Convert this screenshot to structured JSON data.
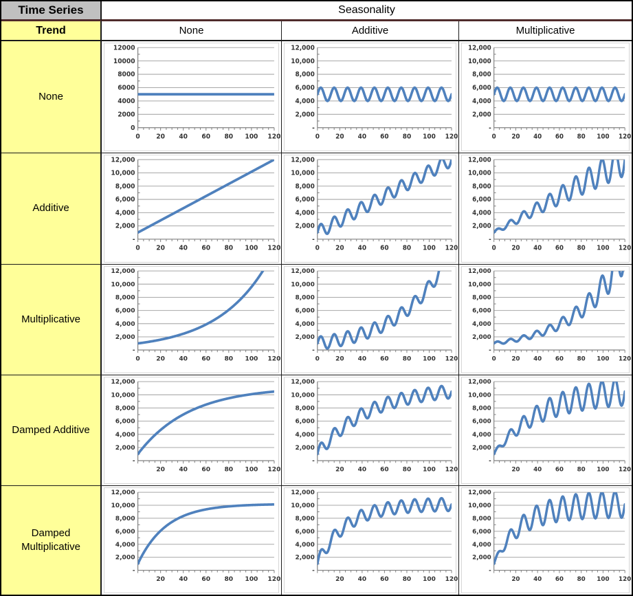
{
  "header": {
    "corner": "Time Series",
    "seasonality": "Seasonality",
    "trend": "Trend",
    "columns": [
      "None",
      "Additive",
      "Multiplicative"
    ]
  },
  "rows": [
    {
      "label": "None"
    },
    {
      "label": "Additive"
    },
    {
      "label": "Multiplicative"
    },
    {
      "label": "Damped Additive"
    },
    {
      "label": "Damped Multiplicative"
    }
  ],
  "colors": {
    "line": "#4F81BD",
    "grid": "#a8a8a8",
    "axis": "#808080",
    "tick_text": "#333333",
    "row_header_bg": "#FFFF99",
    "corner_bg": "#C0C0C0",
    "divider": "#4F2B2B",
    "table_border": "#000000"
  },
  "models": {
    "trend": {
      "none": {
        "type": "constant",
        "level": 5000
      },
      "additive": {
        "type": "linear",
        "start": 1000,
        "end": 12000
      },
      "multiplicative": {
        "type": "exponential",
        "start": 1000,
        "value_at_110": 12000
      },
      "damped_additive": {
        "type": "damped",
        "start": 1000,
        "asymptote": 11200,
        "tau": 45
      },
      "damped_multiplicative": {
        "type": "damped",
        "start": 1000,
        "asymptote": 10200,
        "tau": 25
      }
    },
    "seasonality": {
      "none": {
        "type": "none"
      },
      "additive": {
        "type": "additive",
        "amplitude": 1000,
        "period": 12
      },
      "multiplicative": {
        "type": "multiplicative",
        "fraction": 0.2,
        "period": 12
      }
    }
  },
  "chart_data": [
    {
      "type": "line",
      "cell": "trend-none-seasonality-none",
      "trend": "none",
      "seasonality": "none",
      "x_range": [
        0,
        120
      ],
      "ylim": [
        0,
        12000
      ],
      "grid": true,
      "approx": {
        "start": 5000,
        "end": 5000,
        "shape": "flat line at 5000"
      },
      "ytick_labels": [
        "12000",
        "10000",
        "8000",
        "6000",
        "4000",
        "2000",
        "0"
      ],
      "xtick_labels": [
        "0",
        "20",
        "40",
        "60",
        "80",
        "100",
        "120"
      ]
    },
    {
      "type": "line",
      "cell": "trend-none-seasonality-additive",
      "trend": "none",
      "seasonality": "additive",
      "x_range": [
        0,
        120
      ],
      "ylim": [
        0,
        12000
      ],
      "grid": true,
      "approx": {
        "start": 5000,
        "end": 5000,
        "min": 4000,
        "max": 6000,
        "cycles": 10,
        "shape": "constant-amplitude wave around 5000"
      },
      "ytick_labels": [
        "12,000",
        "10,000",
        "8,000",
        "6,000",
        "4,000",
        "2,000",
        "-"
      ],
      "xtick_labels": [
        "0",
        "20",
        "40",
        "60",
        "80",
        "100",
        "120"
      ]
    },
    {
      "type": "line",
      "cell": "trend-none-seasonality-multiplicative",
      "trend": "none",
      "seasonality": "multiplicative",
      "x_range": [
        0,
        120
      ],
      "ylim": [
        0,
        12000
      ],
      "grid": true,
      "approx": {
        "start": 5000,
        "end": 5000,
        "min": 4000,
        "max": 6000,
        "cycles": 10,
        "shape": "constant wave around 5000"
      },
      "ytick_labels": [
        "12,000",
        "10,000",
        "8,000",
        "6,000",
        "4,000",
        "2,000",
        "-"
      ],
      "xtick_labels": [
        "0",
        "20",
        "40",
        "60",
        "80",
        "100",
        "120"
      ]
    },
    {
      "type": "line",
      "cell": "trend-additive-seasonality-none",
      "trend": "additive",
      "seasonality": "none",
      "x_range": [
        0,
        120
      ],
      "ylim": [
        0,
        12000
      ],
      "grid": true,
      "approx": {
        "start": 1000,
        "end": 12000,
        "shape": "straight rising line"
      },
      "ytick_labels": [
        "12,000",
        "10,000",
        "8,000",
        "6,000",
        "4,000",
        "2,000",
        "-"
      ],
      "xtick_labels": [
        "0",
        "20",
        "40",
        "60",
        "80",
        "100",
        "120"
      ]
    },
    {
      "type": "line",
      "cell": "trend-additive-seasonality-additive",
      "trend": "additive",
      "seasonality": "additive",
      "x_range": [
        0,
        120
      ],
      "ylim": [
        0,
        12000
      ],
      "grid": true,
      "approx": {
        "start": 1000,
        "end": 12000,
        "amplitude": 1000,
        "cycles": 10,
        "shape": "rising wave, constant amplitude"
      },
      "ytick_labels": [
        "12,000",
        "10,000",
        "8,000",
        "6,000",
        "4,000",
        "2,000",
        "-"
      ],
      "xtick_labels": [
        "0",
        "20",
        "40",
        "60",
        "80",
        "100",
        "120"
      ]
    },
    {
      "type": "line",
      "cell": "trend-additive-seasonality-multiplicative",
      "trend": "additive",
      "seasonality": "multiplicative",
      "x_range": [
        0,
        120
      ],
      "ylim": [
        0,
        12000
      ],
      "grid": true,
      "approx": {
        "start": 1000,
        "end": 12000,
        "amplitude_pct": 20,
        "cycles": 10,
        "shape": "rising wave, growing amplitude"
      },
      "ytick_labels": [
        "12,000",
        "10,000",
        "8,000",
        "6,000",
        "4,000",
        "2,000",
        "-"
      ],
      "xtick_labels": [
        "0",
        "20",
        "40",
        "60",
        "80",
        "100",
        "120"
      ]
    },
    {
      "type": "line",
      "cell": "trend-multiplicative-seasonality-none",
      "trend": "multiplicative",
      "seasonality": "none",
      "x_range": [
        0,
        120
      ],
      "ylim": [
        0,
        12000
      ],
      "grid": true,
      "approx": {
        "start": 1000,
        "value_at_110": 12000,
        "shape": "exponential growth curve"
      },
      "ytick_labels": [
        "12,000",
        "10,000",
        "8,000",
        "6,000",
        "4,000",
        "2,000",
        "-"
      ],
      "xtick_labels": [
        "0",
        "20",
        "40",
        "60",
        "80",
        "100",
        "120"
      ]
    },
    {
      "type": "line",
      "cell": "trend-multiplicative-seasonality-additive",
      "trend": "multiplicative",
      "seasonality": "additive",
      "x_range": [
        0,
        120
      ],
      "ylim": [
        0,
        12000
      ],
      "grid": true,
      "approx": {
        "start": 1000,
        "amplitude": 1000,
        "cycles": 10,
        "shape": "exponential growth with constant-amplitude wave"
      },
      "ytick_labels": [
        "12,000",
        "10,000",
        "8,000",
        "6,000",
        "4,000",
        "2,000",
        "-"
      ],
      "xtick_labels": [
        "0",
        "20",
        "40",
        "60",
        "80",
        "100",
        "120"
      ]
    },
    {
      "type": "line",
      "cell": "trend-multiplicative-seasonality-multiplicative",
      "trend": "multiplicative",
      "seasonality": "multiplicative",
      "x_range": [
        0,
        120
      ],
      "ylim": [
        0,
        12000
      ],
      "grid": true,
      "approx": {
        "start": 1000,
        "amplitude_pct": 20,
        "cycles": 10,
        "shape": "exponential growth with growing wave"
      },
      "ytick_labels": [
        "12,000",
        "10,000",
        "8,000",
        "6,000",
        "4,000",
        "2,000",
        "-"
      ],
      "xtick_labels": [
        "0",
        "20",
        "40",
        "60",
        "80",
        "100",
        "120"
      ]
    },
    {
      "type": "line",
      "cell": "trend-damped-additive-seasonality-none",
      "trend": "damped_additive",
      "seasonality": "none",
      "x_range": [
        0,
        120
      ],
      "ylim": [
        0,
        12000
      ],
      "grid": true,
      "approx": {
        "start": 1000,
        "end": 10500,
        "shape": "concave curve saturating near 10,500"
      },
      "ytick_labels": [
        "12,000",
        "10,000",
        "8,000",
        "6,000",
        "4,000",
        "2,000",
        "-"
      ],
      "xtick_labels": [
        "",
        "20",
        "40",
        "60",
        "80",
        "100",
        "120"
      ]
    },
    {
      "type": "line",
      "cell": "trend-damped-additive-seasonality-additive",
      "trend": "damped_additive",
      "seasonality": "additive",
      "x_range": [
        0,
        120
      ],
      "ylim": [
        0,
        12000
      ],
      "grid": true,
      "approx": {
        "start": 1000,
        "end": 10500,
        "amplitude": 1000,
        "cycles": 10,
        "shape": "damped rise with constant-amplitude wave"
      },
      "ytick_labels": [
        "12,000",
        "10,000",
        "8,000",
        "6,000",
        "4,000",
        "2,000",
        "-"
      ],
      "xtick_labels": [
        "",
        "20",
        "40",
        "60",
        "80",
        "100",
        "120"
      ]
    },
    {
      "type": "line",
      "cell": "trend-damped-additive-seasonality-multiplicative",
      "trend": "damped_additive",
      "seasonality": "multiplicative",
      "x_range": [
        0,
        120
      ],
      "ylim": [
        0,
        12000
      ],
      "grid": true,
      "approx": {
        "start": 1000,
        "end": 10500,
        "amplitude_pct": 20,
        "cycles": 10,
        "shape": "damped rise with growing wave, ~8,000-12,000 at end"
      },
      "ytick_labels": [
        "12,000",
        "10,000",
        "8,000",
        "6,000",
        "4,000",
        "2,000",
        "-"
      ],
      "xtick_labels": [
        "",
        "20",
        "40",
        "60",
        "80",
        "100",
        "120"
      ]
    },
    {
      "type": "line",
      "cell": "trend-damped-multiplicative-seasonality-none",
      "trend": "damped_multiplicative",
      "seasonality": "none",
      "x_range": [
        0,
        120
      ],
      "ylim": [
        0,
        12000
      ],
      "grid": true,
      "approx": {
        "start": 1000,
        "end": 10200,
        "shape": "fast rise, flat near 10,200 after x=60"
      },
      "ytick_labels": [
        "12,000",
        "10,000",
        "8,000",
        "6,000",
        "4,000",
        "2,000",
        "-"
      ],
      "xtick_labels": [
        "",
        "20",
        "40",
        "60",
        "80",
        "100",
        "120"
      ]
    },
    {
      "type": "line",
      "cell": "trend-damped-multiplicative-seasonality-additive",
      "trend": "damped_multiplicative",
      "seasonality": "additive",
      "x_range": [
        0,
        120
      ],
      "ylim": [
        0,
        12000
      ],
      "grid": true,
      "approx": {
        "start": 1000,
        "end": 10200,
        "amplitude": 1000,
        "cycles": 10,
        "shape": "fast damped rise with constant-amplitude wave"
      },
      "ytick_labels": [
        "12,000",
        "10,000",
        "8,000",
        "6,000",
        "4,000",
        "2,000",
        "-"
      ],
      "xtick_labels": [
        "",
        "20",
        "40",
        "60",
        "80",
        "100",
        "120"
      ]
    },
    {
      "type": "line",
      "cell": "trend-damped-multiplicative-seasonality-multiplicative",
      "trend": "damped_multiplicative",
      "seasonality": "multiplicative",
      "x_range": [
        0,
        120
      ],
      "ylim": [
        0,
        12000
      ],
      "grid": true,
      "approx": {
        "start": 1000,
        "end": 10200,
        "amplitude_pct": 20,
        "cycles": 10,
        "shape": "fast damped rise with wave ~8,000-12,000 at end"
      },
      "ytick_labels": [
        "12,000",
        "10,000",
        "8,000",
        "6,000",
        "4,000",
        "2,000",
        "-"
      ],
      "xtick_labels": [
        "",
        "20",
        "40",
        "60",
        "80",
        "100",
        "120"
      ]
    }
  ]
}
